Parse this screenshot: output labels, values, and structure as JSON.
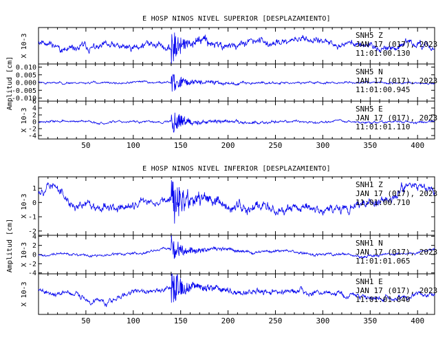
{
  "chart_data": [
    {
      "type": "line",
      "title": "E HOSP NINOS NIVEL SUPERIOR [DESPLAZAMIENTO]",
      "ylabel": "Amplitud [cm]",
      "xlim": [
        0,
        418
      ],
      "x_ticks": [
        50,
        100,
        150,
        200,
        250,
        300,
        350,
        400
      ],
      "x_tick_labels": [
        "50",
        "100",
        "150",
        "200",
        "250",
        "300",
        "350",
        "400"
      ],
      "line_color": "#0000ee",
      "grid": false,
      "series": [
        {
          "name": "SNH5 Z",
          "date": "JAN 17 (017), 2023",
          "time": "11:01:00.130",
          "scale_label": "X 10-3",
          "ylim": [
            -2.3,
            2.3
          ],
          "y_ticks": [],
          "y_tick_labels": [],
          "waveform": {
            "seed": 11,
            "event_x": 140,
            "base_amp": 0.45,
            "event_amp": 1.9,
            "drift_amp": 0.55,
            "dip_x": 210,
            "dip_amp": 0.5,
            "pre_drift": [
              [
                0,
                0.0
              ],
              [
                10,
                0.15
              ],
              [
                30,
                -0.45
              ],
              [
                80,
                0.1
              ],
              [
                140,
                -0.2
              ],
              [
                200,
                0.5
              ],
              [
                260,
                0.6
              ],
              [
                300,
                0.3
              ],
              [
                360,
                0.2
              ],
              [
                418,
                -0.2
              ]
            ]
          }
        },
        {
          "name": "SNH5 N",
          "date": "JAN 17 (017), 2023",
          "time": "11:01:00.945",
          "scale_label": "",
          "ylim": [
            -0.012,
            0.012
          ],
          "y_ticks": [
            0.01,
            0.005,
            0.0,
            -0.005,
            -0.01
          ],
          "y_tick_labels": [
            "0.010",
            "0.005",
            "0.000",
            "-0.005",
            "-0.010"
          ],
          "waveform": {
            "seed": 23,
            "event_x": 140,
            "base_amp": 0.0007,
            "event_amp": 0.0065,
            "drift_amp": 0.0004,
            "dip_x": 210,
            "dip_amp": 0.0015,
            "pre_drift": [
              [
                0,
                0.0
              ],
              [
                418,
                0.0
              ]
            ]
          }
        },
        {
          "name": "SNH5 E",
          "date": "JAN 17 (017), 2023",
          "time": "11:01:01.110",
          "scale_label": "X 10-3",
          "ylim": [
            -5,
            6
          ],
          "y_ticks": [
            6,
            4,
            2,
            0,
            -2,
            -4
          ],
          "y_tick_labels": [
            "6",
            "4",
            "2",
            "0",
            "-2",
            "-4"
          ],
          "waveform": {
            "seed": 37,
            "event_x": 140,
            "base_amp": 0.35,
            "event_amp": 3.6,
            "drift_amp": 0.3,
            "dip_x": 0,
            "dip_amp": 0,
            "pre_drift": [
              [
                0,
                0.0
              ],
              [
                418,
                0.0
              ]
            ]
          }
        }
      ]
    },
    {
      "type": "line",
      "title": "E HOSP NINOS NIVEL INFERIOR [DESPLAZAMIENTO]",
      "ylabel": "Amplitud [cm]",
      "xlim": [
        0,
        418
      ],
      "x_ticks": [
        50,
        100,
        150,
        200,
        250,
        300,
        350,
        400
      ],
      "x_tick_labels": [
        "50",
        "100",
        "150",
        "200",
        "250",
        "300",
        "350",
        "400"
      ],
      "line_color": "#0000ee",
      "grid": false,
      "series": [
        {
          "name": "SNH1 Z",
          "date": "JAN 17 (017), 2023",
          "time": "11:01:00.710",
          "scale_label": "X 10-3",
          "ylim": [
            -2.3,
            1.8
          ],
          "y_ticks": [
            1,
            0,
            -1,
            -2
          ],
          "y_tick_labels": [
            "1",
            "0",
            "-1",
            "-2"
          ],
          "waveform": {
            "seed": 53,
            "event_x": 140,
            "base_amp": 0.35,
            "event_amp": 1.8,
            "drift_amp": 0.4,
            "dip_x": 0,
            "dip_amp": 0,
            "pre_drift": [
              [
                0,
                0.5
              ],
              [
                15,
                1.0
              ],
              [
                30,
                0.2
              ],
              [
                60,
                0.0
              ],
              [
                120,
                -0.1
              ],
              [
                200,
                0.0
              ],
              [
                300,
                -0.6
              ],
              [
                350,
                0.1
              ],
              [
                395,
                1.2
              ],
              [
                418,
                0.8
              ]
            ]
          }
        },
        {
          "name": "SNH1 N",
          "date": "JAN 17 (017), 2023",
          "time": "11:01:01.065",
          "scale_label": "X 10-3",
          "ylim": [
            -4.2,
            4.2
          ],
          "y_ticks": [
            4,
            2,
            0,
            -2,
            -4
          ],
          "y_tick_labels": [
            "4",
            "2",
            "0",
            "-2",
            "-4"
          ],
          "waveform": {
            "seed": 71,
            "event_x": 140,
            "base_amp": 0.3,
            "event_amp": 2.8,
            "drift_amp": 0.5,
            "dip_x": 0,
            "dip_amp": 0,
            "pre_drift": [
              [
                0,
                -0.3
              ],
              [
                100,
                0.3
              ],
              [
                180,
                1.2
              ],
              [
                230,
                0.8
              ],
              [
                300,
                -0.2
              ],
              [
                360,
                0.2
              ],
              [
                418,
                0.8
              ]
            ]
          }
        },
        {
          "name": "SNH1 E",
          "date": "JAN 17 (017), 2023",
          "time": "11:01:01.840",
          "scale_label": "X 10-3",
          "ylim": [
            -2.2,
            2.2
          ],
          "y_ticks": [],
          "y_tick_labels": [],
          "waveform": {
            "seed": 89,
            "event_x": 140,
            "base_amp": 0.3,
            "event_amp": 2.0,
            "drift_amp": 0.35,
            "dip_x": 0,
            "dip_amp": 0,
            "pre_drift": [
              [
                0,
                0.0
              ],
              [
                40,
                0.2
              ],
              [
                55,
                -0.8
              ],
              [
                100,
                0.2
              ],
              [
                170,
                0.7
              ],
              [
                250,
                0.2
              ],
              [
                330,
                -0.2
              ],
              [
                418,
                -0.2
              ]
            ]
          }
        }
      ]
    }
  ]
}
